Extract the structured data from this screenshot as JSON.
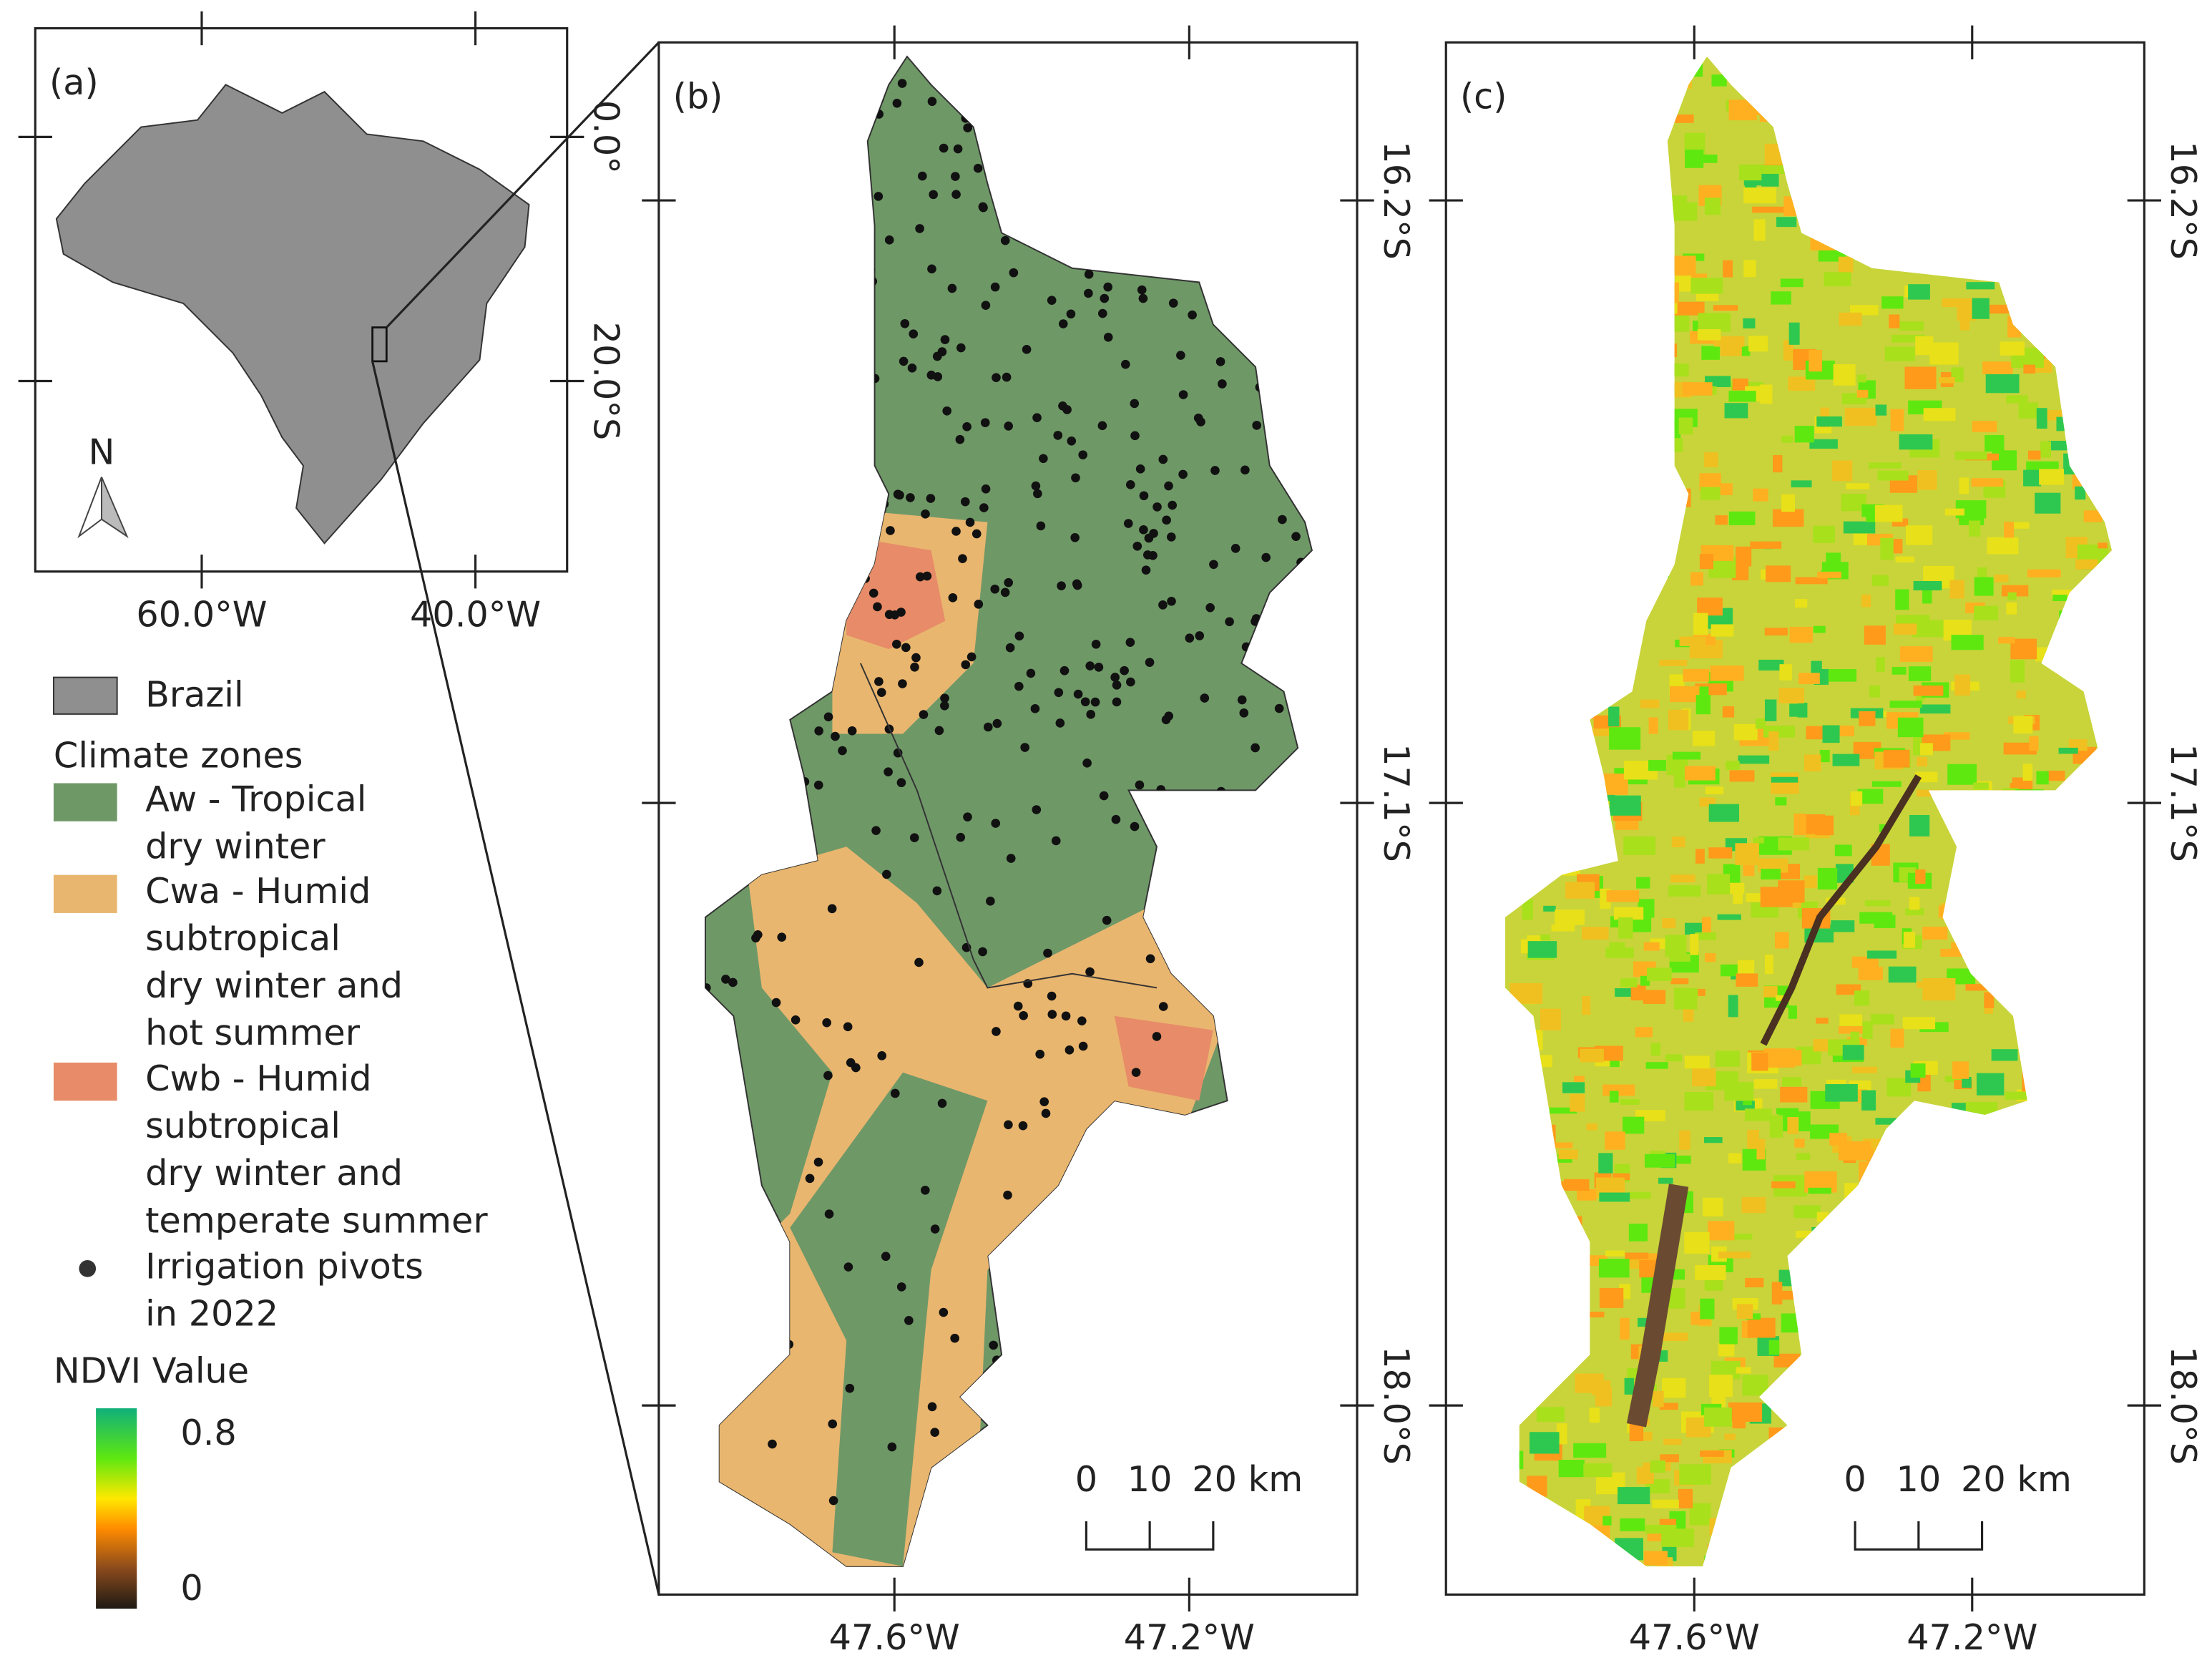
{
  "panels": [
    {
      "label": "(a)",
      "x_ticks": [
        "60.0°W",
        "40.0°W"
      ],
      "y_ticks": [
        "0.0°",
        "20.0°S"
      ],
      "north": "N"
    },
    {
      "label": "(b)",
      "x_ticks": [
        "47.6°W",
        "47.2°W"
      ],
      "y_ticks": [
        "16.2°S",
        "17.1°S",
        "18.0°S"
      ],
      "scale": [
        "0",
        "10",
        "20 km"
      ]
    },
    {
      "label": "(c)",
      "x_ticks": [
        "47.6°W",
        "47.2°W"
      ],
      "y_ticks": [
        "16.2°S",
        "17.1°S",
        "18.0°S"
      ],
      "scale": [
        "0",
        "10",
        "20 km"
      ]
    }
  ],
  "legend": {
    "brazil": "Brazil",
    "heading": "Climate zones",
    "items": [
      {
        "lines": [
          "Aw - Tropical",
          "dry winter"
        ]
      },
      {
        "lines": [
          "Cwa - Humid",
          "subtropical",
          "dry winter and",
          "hot summer"
        ]
      },
      {
        "lines": [
          "Cwb - Humid",
          "subtropical",
          "dry winter and",
          "temperate summer"
        ]
      },
      {
        "lines": [
          "Irrigation pivots",
          "in 2022"
        ]
      }
    ]
  },
  "ndvi": {
    "title": "NDVI Value",
    "max": "0.8",
    "min": "0"
  }
}
